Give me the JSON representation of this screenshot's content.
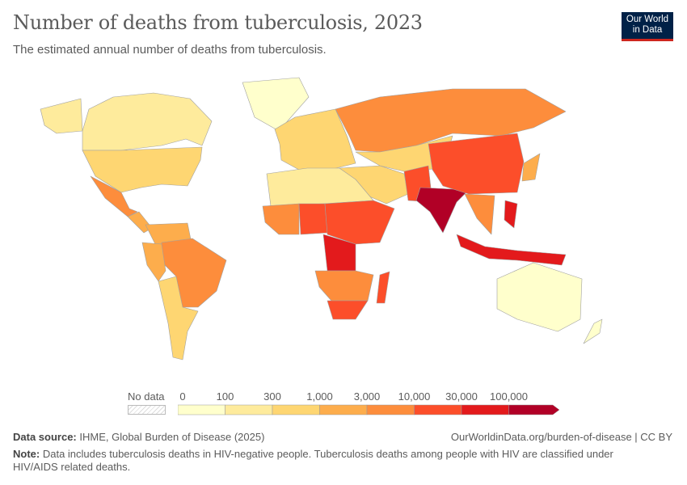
{
  "header": {
    "title": "Number of deaths from tuberculosis, 2023",
    "subtitle": "The estimated annual number of deaths from tuberculosis.",
    "logo_line1": "Our World",
    "logo_line2": "in Data"
  },
  "legend": {
    "no_data_label": "No data",
    "tick_labels": [
      "0",
      "100",
      "300",
      "1,000",
      "3,000",
      "10,000",
      "30,000",
      "100,000"
    ],
    "bin_colors": [
      "#ffffcc",
      "#feeb9c",
      "#fed672",
      "#fdad4c",
      "#fd8d3c",
      "#fc4e2a",
      "#e31a1c",
      "#b10026"
    ]
  },
  "map": {
    "regions": [
      {
        "id": "alaska",
        "bin": 1
      },
      {
        "id": "canada",
        "bin": 1
      },
      {
        "id": "greenland",
        "bin": 0
      },
      {
        "id": "usa",
        "bin": 2
      },
      {
        "id": "mexico",
        "bin": 4
      },
      {
        "id": "central-america",
        "bin": 3
      },
      {
        "id": "northern-south-america",
        "bin": 3
      },
      {
        "id": "brazil",
        "bin": 4
      },
      {
        "id": "peru",
        "bin": 3
      },
      {
        "id": "southern-cone",
        "bin": 2
      },
      {
        "id": "europe",
        "bin": 2
      },
      {
        "id": "russia",
        "bin": 4
      },
      {
        "id": "central-asia",
        "bin": 2
      },
      {
        "id": "middle-east",
        "bin": 2
      },
      {
        "id": "north-africa",
        "bin": 1
      },
      {
        "id": "west-africa",
        "bin": 4
      },
      {
        "id": "nigeria",
        "bin": 5
      },
      {
        "id": "east-africa",
        "bin": 5
      },
      {
        "id": "dr-congo",
        "bin": 6
      },
      {
        "id": "southern-africa",
        "bin": 4
      },
      {
        "id": "south-africa",
        "bin": 5
      },
      {
        "id": "madagascar",
        "bin": 5
      },
      {
        "id": "pakistan-afghanistan",
        "bin": 5
      },
      {
        "id": "india",
        "bin": 7
      },
      {
        "id": "china",
        "bin": 5
      },
      {
        "id": "southeast-asia",
        "bin": 4
      },
      {
        "id": "philippines",
        "bin": 6
      },
      {
        "id": "indonesia",
        "bin": 6
      },
      {
        "id": "japan",
        "bin": 3
      },
      {
        "id": "australia",
        "bin": 0
      },
      {
        "id": "new-zealand",
        "bin": 0
      }
    ]
  },
  "footer": {
    "source_label": "Data source:",
    "source": "IHME, Global Burden of Disease (2025)",
    "url": "OurWorldinData.org/burden-of-disease | CC BY",
    "note_label": "Note:",
    "note": "Data includes tuberculosis deaths in HIV-negative people. Tuberculosis deaths among people with HIV are classified under HIV/AIDS related deaths."
  }
}
